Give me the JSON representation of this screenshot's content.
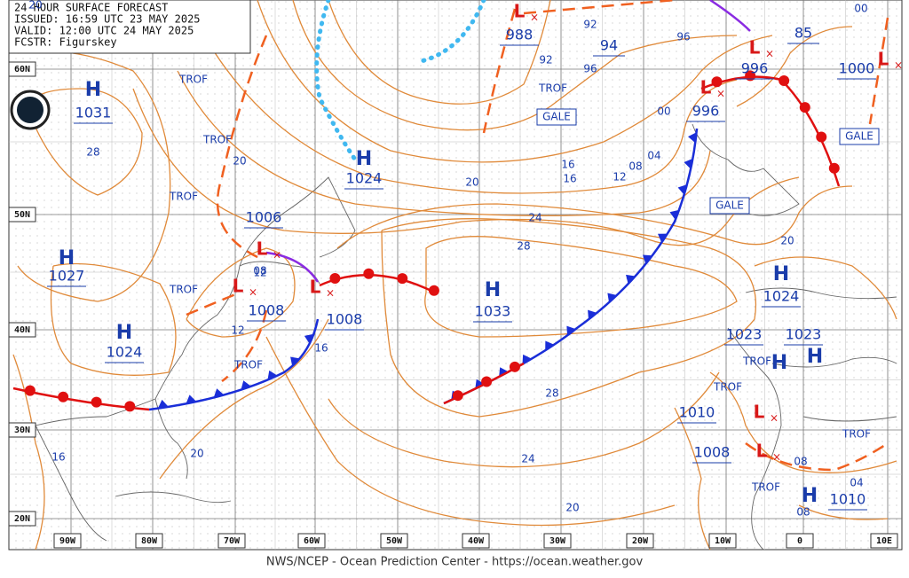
{
  "header": {
    "lines": [
      "24-HOUR SURFACE FORECAST",
      "ISSUED: 16:59 UTC 23 MAY 2025",
      "VALID: 12:00 UTC 24 MAY 2025",
      "FCSTR: Figurskey"
    ]
  },
  "footer": "NWS/NCEP - Ocean Prediction Center - https://ocean.weather.gov",
  "lat_labels": [
    "60N",
    "50N",
    "40N",
    "30N",
    "20N"
  ],
  "lon_labels": [
    "90W",
    "80W",
    "70W",
    "60W",
    "50W",
    "40W",
    "30W",
    "20W",
    "10W",
    "0",
    "10E"
  ],
  "highs": [
    {
      "symbol": "H",
      "pressure": "1031"
    },
    {
      "symbol": "H",
      "pressure": "1024"
    },
    {
      "symbol": "H",
      "pressure": "1027"
    },
    {
      "symbol": "H",
      "pressure": "1024"
    },
    {
      "symbol": "H",
      "pressure": "1033"
    },
    {
      "symbol": "H",
      "pressure": "1024"
    },
    {
      "symbol": "H",
      "pressure": "1023"
    },
    {
      "symbol": "H",
      "pressure": "1023"
    },
    {
      "symbol": "H",
      "pressure": "1010"
    }
  ],
  "lows": [
    {
      "symbol": "L",
      "pressure": "988"
    },
    {
      "symbol": "L",
      "pressure": "996"
    },
    {
      "symbol": "L",
      "pressure": "996"
    },
    {
      "symbol": "L",
      "pressure": "1006"
    },
    {
      "symbol": "L",
      "pressure": "1008"
    },
    {
      "symbol": "L",
      "pressure": "1008"
    },
    {
      "symbol": "L",
      "pressure": "1010"
    },
    {
      "symbol": "L",
      "pressure": "1008"
    },
    {
      "symbol": "L",
      "pressure": "1000"
    }
  ],
  "extra_pressures": [
    "94",
    "85"
  ],
  "isobar_labels": [
    "92",
    "92",
    "96",
    "96",
    "00",
    "04",
    "08",
    "12",
    "16",
    "20",
    "24",
    "28",
    "20",
    "28",
    "16",
    "20",
    "24",
    "20",
    "28",
    "12",
    "08",
    "12",
    "16",
    "20",
    "16",
    "08",
    "04",
    "08",
    "00",
    "20"
  ],
  "trof_labels": [
    "TROF",
    "TROF",
    "TROF",
    "TROF",
    "TROF",
    "TROF",
    "TROF",
    "TROF",
    "TROF",
    "TROF"
  ],
  "gale_labels": [
    "GALE",
    "GALE",
    "GALE"
  ]
}
